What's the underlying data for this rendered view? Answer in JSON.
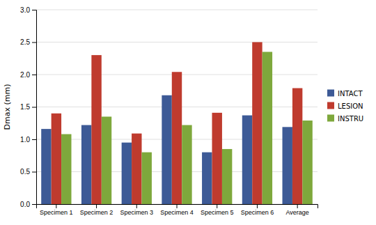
{
  "chart_data": {
    "type": "bar",
    "ylabel": "Dmax (mm)",
    "categories": [
      "Specimen 1",
      "Specimen 2",
      "Specimen 3",
      "Specimen 4",
      "Specimen 5",
      "Specimen 6",
      "Average"
    ],
    "series": [
      {
        "name": "INTACT",
        "color": "#3D5A96",
        "values": [
          1.16,
          1.22,
          0.95,
          1.68,
          0.8,
          1.37,
          1.19
        ]
      },
      {
        "name": "LESION",
        "color": "#BF3B2E",
        "values": [
          1.4,
          2.3,
          1.09,
          2.04,
          1.41,
          2.5,
          1.79
        ]
      },
      {
        "name": "INSTRU",
        "color": "#7EA83C",
        "values": [
          1.08,
          1.35,
          0.8,
          1.22,
          0.85,
          2.35,
          1.29
        ]
      }
    ],
    "ylim": [
      0,
      3.0
    ],
    "yticks": [
      {
        "value": 0,
        "label": "0.0"
      },
      0.5,
      {
        "value": 1.0,
        "label": "1.0"
      },
      1.5,
      {
        "value": 2.0,
        "label": "2.0"
      },
      2.5,
      {
        "value": 3.0,
        "label": "3.0"
      }
    ],
    "grid": true,
    "legend": "right"
  }
}
